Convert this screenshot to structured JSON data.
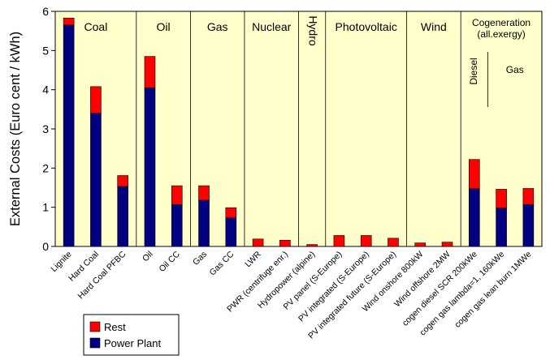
{
  "chart_data": {
    "type": "bar",
    "stacked": true,
    "ylabel": "External Costs (Euro cent / kWh)",
    "ylim": [
      0,
      6
    ],
    "yticks": [
      0,
      1,
      2,
      3,
      4,
      5,
      6
    ],
    "categories": [
      "Lignite",
      "Hard Coal",
      "Hard Coal PFBC",
      "Oil",
      "Oil CC",
      "Gas",
      "Gas CC",
      "LWR",
      "PWR (centrifuge enr.)",
      "Hydropower (alpine)",
      "PV panel (S-Europe)",
      "PV integrated (S-Europe)",
      "PV integrated future (S-Europe)",
      "Wind onshore 800kW",
      "Wind offshore 2MW",
      "cogen diesel SCR 200kWe",
      "cogen gas lambda=1, 160kWe",
      "cogen gas lean burn 1MWe"
    ],
    "series": [
      {
        "name": "Power Plant",
        "color": "#000080",
        "values": [
          5.65,
          3.4,
          1.53,
          4.05,
          1.07,
          1.18,
          0.73,
          0,
          0,
          0,
          0,
          0,
          0,
          0,
          0,
          1.47,
          0.98,
          1.07
        ]
      },
      {
        "name": "Rest",
        "color": "#ff0000",
        "values": [
          0.18,
          0.68,
          0.28,
          0.8,
          0.48,
          0.37,
          0.26,
          0.19,
          0.16,
          0.05,
          0.28,
          0.28,
          0.21,
          0.09,
          0.11,
          0.75,
          0.48,
          0.41
        ]
      }
    ],
    "groups": [
      {
        "label": "Coal",
        "from": 0,
        "to": 2
      },
      {
        "label": "Oil",
        "from": 3,
        "to": 4
      },
      {
        "label": "Gas",
        "from": 5,
        "to": 6
      },
      {
        "label": "Nuclear",
        "from": 7,
        "to": 8
      },
      {
        "label": "Hydro",
        "from": 9,
        "to": 9,
        "vertical": true
      },
      {
        "label": "Photovoltaic",
        "from": 10,
        "to": 12
      },
      {
        "label": "Wind",
        "from": 13,
        "to": 14
      },
      {
        "label": "Cogeneration\n(all.exergy)",
        "from": 15,
        "to": 17
      }
    ],
    "subgroups": [
      {
        "label": "Diesel",
        "from": 15,
        "to": 15,
        "vertical": true
      },
      {
        "label": "Gas",
        "from": 16,
        "to": 17
      }
    ],
    "legend": {
      "position": "bottom-left",
      "entries": [
        "Rest",
        "Power Plant"
      ]
    },
    "background_color": "#ffffcc",
    "grid": false
  }
}
